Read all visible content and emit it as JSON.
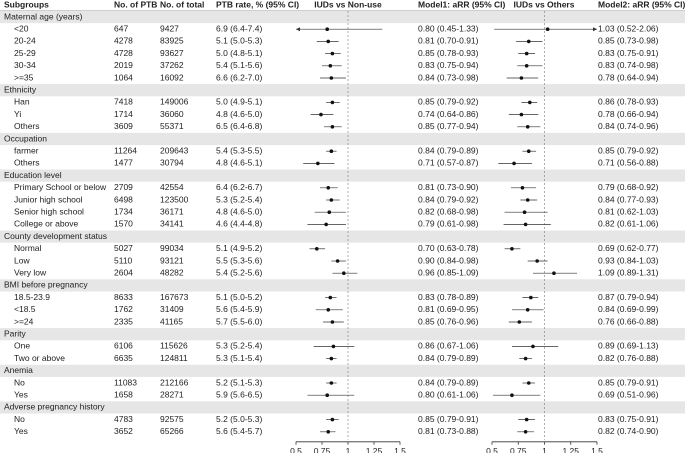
{
  "header": {
    "subgroups": "Subgroups",
    "ptb": "No. of PTB",
    "total": "No. of total",
    "rate": "PTB rate, % (95% CI)",
    "plot1": "IUDs vs Non-use",
    "model1": "Model1: aRR (95% CI)",
    "plot2": "IUDs vs Others",
    "model2": "Model2: aRR (95% CI)"
  },
  "axis": {
    "xlim": [
      0.5,
      1.5
    ],
    "xticks": [
      0.5,
      0.75,
      1,
      1.25,
      1.5
    ],
    "reference": 1
  },
  "groups": [
    {
      "name": "Maternal age (years)",
      "rows": [
        {
          "label": "<20",
          "ptb": 647,
          "total": 9427,
          "rate": "6.9 (6.4-7.4)",
          "m1": {
            "est": 0.8,
            "lo": 0.45,
            "hi": 1.33,
            "label": "0.80 (0.45-1.33)"
          },
          "m2": {
            "est": 1.03,
            "lo": 0.52,
            "hi": 2.06,
            "label": "1.03 (0.52-2.06)"
          }
        },
        {
          "label": "20-24",
          "ptb": 4278,
          "total": 83925,
          "rate": "5.1 (5.0-5.3)",
          "m1": {
            "est": 0.81,
            "lo": 0.7,
            "hi": 0.91,
            "label": "0.81 (0.70-0.91)"
          },
          "m2": {
            "est": 0.85,
            "lo": 0.73,
            "hi": 0.98,
            "label": "0.85 (0.73-0.98)"
          }
        },
        {
          "label": "25-29",
          "ptb": 4728,
          "total": 93627,
          "rate": "5.0 (4.8-5.1)",
          "m1": {
            "est": 0.85,
            "lo": 0.78,
            "hi": 0.93,
            "label": "0.85 (0.78-0.93)"
          },
          "m2": {
            "est": 0.83,
            "lo": 0.75,
            "hi": 0.91,
            "label": "0.83 (0.75-0.91)"
          }
        },
        {
          "label": "30-34",
          "ptb": 2019,
          "total": 37262,
          "rate": "5.4 (5.1-5.6)",
          "m1": {
            "est": 0.83,
            "lo": 0.75,
            "hi": 0.94,
            "label": "0.83 (0.75-0.94)"
          },
          "m2": {
            "est": 0.83,
            "lo": 0.74,
            "hi": 0.98,
            "label": "0.83 (0.74-0.98)"
          }
        },
        {
          "label": ">=35",
          "ptb": 1064,
          "total": 16092,
          "rate": "6.6 (6.2-7.0)",
          "m1": {
            "est": 0.84,
            "lo": 0.73,
            "hi": 0.98,
            "label": "0.84 (0.73-0.98)"
          },
          "m2": {
            "est": 0.78,
            "lo": 0.64,
            "hi": 0.94,
            "label": "0.78 (0.64-0.94)"
          }
        }
      ]
    },
    {
      "name": "Ethnicity",
      "rows": [
        {
          "label": "Han",
          "ptb": 7418,
          "total": 149006,
          "rate": "5.0 (4.9-5.1)",
          "m1": {
            "est": 0.85,
            "lo": 0.79,
            "hi": 0.92,
            "label": "0.85 (0.79-0.92)"
          },
          "m2": {
            "est": 0.86,
            "lo": 0.78,
            "hi": 0.93,
            "label": "0.86 (0.78-0.93)"
          }
        },
        {
          "label": "Yi",
          "ptb": 1714,
          "total": 36060,
          "rate": "4.8 (4.6-5.0)",
          "m1": {
            "est": 0.74,
            "lo": 0.64,
            "hi": 0.86,
            "label": "0.74 (0.64-0.86)"
          },
          "m2": {
            "est": 0.78,
            "lo": 0.66,
            "hi": 0.94,
            "label": "0.78 (0.66-0.94)"
          }
        },
        {
          "label": "Others",
          "ptb": 3609,
          "total": 55371,
          "rate": "6.5 (6.4-6.8)",
          "m1": {
            "est": 0.85,
            "lo": 0.77,
            "hi": 0.94,
            "label": "0.85 (0.77-0.94)"
          },
          "m2": {
            "est": 0.84,
            "lo": 0.74,
            "hi": 0.96,
            "label": "0.84 (0.74-0.96)"
          }
        }
      ]
    },
    {
      "name": "Occupation",
      "rows": [
        {
          "label": "farmer",
          "ptb": 11264,
          "total": 209643,
          "rate": "5.4 (5.3-5.5)",
          "m1": {
            "est": 0.84,
            "lo": 0.79,
            "hi": 0.89,
            "label": "0.84 (0.79-0.89)"
          },
          "m2": {
            "est": 0.85,
            "lo": 0.79,
            "hi": 0.92,
            "label": "0.85 (0.79-0.92)"
          }
        },
        {
          "label": "Others",
          "ptb": 1477,
          "total": 30794,
          "rate": "4.8 (4.6-5.1)",
          "m1": {
            "est": 0.71,
            "lo": 0.57,
            "hi": 0.87,
            "label": "0.71 (0.57-0.87)"
          },
          "m2": {
            "est": 0.71,
            "lo": 0.56,
            "hi": 0.88,
            "label": "0.71 (0.56-0.88)"
          }
        }
      ]
    },
    {
      "name": "Education level",
      "rows": [
        {
          "label": "Primary School or below",
          "ptb": 2709,
          "total": 42554,
          "rate": "6.4 (6.2-6.7)",
          "m1": {
            "est": 0.81,
            "lo": 0.73,
            "hi": 0.9,
            "label": "0.81 (0.73-0.90)"
          },
          "m2": {
            "est": 0.79,
            "lo": 0.68,
            "hi": 0.92,
            "label": "0.79 (0.68-0.92)"
          }
        },
        {
          "label": "Junior high school",
          "ptb": 6498,
          "total": 123500,
          "rate": "5.3 (5.2-5.4)",
          "m1": {
            "est": 0.84,
            "lo": 0.79,
            "hi": 0.92,
            "label": "0.84 (0.79-0.92)"
          },
          "m2": {
            "est": 0.84,
            "lo": 0.77,
            "hi": 0.93,
            "label": "0.84 (0.77-0.93)"
          }
        },
        {
          "label": "Senior high school",
          "ptb": 1734,
          "total": 36171,
          "rate": "4.8 (4.6-5.0)",
          "m1": {
            "est": 0.82,
            "lo": 0.68,
            "hi": 0.98,
            "label": "0.82 (0.68-0.98)"
          },
          "m2": {
            "est": 0.81,
            "lo": 0.62,
            "hi": 1.03,
            "label": "0.81 (0.62-1.03)"
          }
        },
        {
          "label": "College or above",
          "ptb": 1570,
          "total": 34141,
          "rate": "4.6 (4.4-4.8)",
          "m1": {
            "est": 0.79,
            "lo": 0.61,
            "hi": 0.98,
            "label": "0.79 (0.61-0.98)"
          },
          "m2": {
            "est": 0.82,
            "lo": 0.61,
            "hi": 1.06,
            "label": "0.82 (0.61-1.06)"
          }
        }
      ]
    },
    {
      "name": "County development status",
      "rows": [
        {
          "label": "Normal",
          "ptb": 5027,
          "total": 99034,
          "rate": "5.1 (4.9-5.2)",
          "m1": {
            "est": 0.7,
            "lo": 0.63,
            "hi": 0.78,
            "label": "0.70 (0.63-0.78)"
          },
          "m2": {
            "est": 0.69,
            "lo": 0.62,
            "hi": 0.77,
            "label": "0.69 (0.62-0.77)"
          }
        },
        {
          "label": "Low",
          "ptb": 5110,
          "total": 93121,
          "rate": "5.5 (5.3-5.6)",
          "m1": {
            "est": 0.9,
            "lo": 0.84,
            "hi": 0.98,
            "label": "0.90 (0.84-0.98)"
          },
          "m2": {
            "est": 0.93,
            "lo": 0.84,
            "hi": 1.03,
            "label": "0.93 (0.84-1.03)"
          }
        },
        {
          "label": "Very low",
          "ptb": 2604,
          "total": 48282,
          "rate": "5.4 (5.2-5.6)",
          "m1": {
            "est": 0.96,
            "lo": 0.85,
            "hi": 1.09,
            "label": "0.96 (0.85-1.09)"
          },
          "m2": {
            "est": 1.09,
            "lo": 0.89,
            "hi": 1.31,
            "label": "1.09 (0.89-1.31)"
          }
        }
      ]
    },
    {
      "name": "BMI before pregnancy",
      "rows": [
        {
          "label": "18.5-23.9",
          "ptb": 8633,
          "total": 167673,
          "rate": "5.1 (5.0-5.2)",
          "m1": {
            "est": 0.83,
            "lo": 0.78,
            "hi": 0.89,
            "label": "0.83 (0.78-0.89)"
          },
          "m2": {
            "est": 0.87,
            "lo": 0.79,
            "hi": 0.94,
            "label": "0.87 (0.79-0.94)"
          }
        },
        {
          "label": "<18.5",
          "ptb": 1762,
          "total": 31409,
          "rate": "5.6 (5.4-5.9)",
          "m1": {
            "est": 0.81,
            "lo": 0.69,
            "hi": 0.95,
            "label": "0.81 (0.69-0.95)"
          },
          "m2": {
            "est": 0.84,
            "lo": 0.69,
            "hi": 0.99,
            "label": "0.84 (0.69-0.99)"
          }
        },
        {
          "label": ">=24",
          "ptb": 2335,
          "total": 41165,
          "rate": "5.7 (5.5-6.0)",
          "m1": {
            "est": 0.85,
            "lo": 0.76,
            "hi": 0.96,
            "label": "0.85 (0.76-0.96)"
          },
          "m2": {
            "est": 0.76,
            "lo": 0.66,
            "hi": 0.88,
            "label": "0.76 (0.66-0.88)"
          }
        }
      ]
    },
    {
      "name": "Parity",
      "rows": [
        {
          "label": "One",
          "ptb": 6106,
          "total": 115626,
          "rate": "5.3 (5.2-5.4)",
          "m1": {
            "est": 0.86,
            "lo": 0.67,
            "hi": 1.06,
            "label": "0.86 (0.67-1.06)"
          },
          "m2": {
            "est": 0.89,
            "lo": 0.69,
            "hi": 1.13,
            "label": "0.89 (0.69-1.13)"
          }
        },
        {
          "label": "Two or above",
          "ptb": 6635,
          "total": 124811,
          "rate": "5.3 (5.1-5.4)",
          "m1": {
            "est": 0.84,
            "lo": 0.79,
            "hi": 0.89,
            "label": "0.84 (0.79-0.89)"
          },
          "m2": {
            "est": 0.82,
            "lo": 0.76,
            "hi": 0.88,
            "label": "0.82 (0.76-0.88)"
          }
        }
      ]
    },
    {
      "name": "Anemia",
      "rows": [
        {
          "label": "No",
          "ptb": 11083,
          "total": 212166,
          "rate": "5.2 (5.1-5.3)",
          "m1": {
            "est": 0.84,
            "lo": 0.79,
            "hi": 0.89,
            "label": "0.84 (0.79-0.89)"
          },
          "m2": {
            "est": 0.85,
            "lo": 0.79,
            "hi": 0.91,
            "label": "0.85 (0.79-0.91)"
          }
        },
        {
          "label": "Yes",
          "ptb": 1658,
          "total": 28271,
          "rate": "5.9 (5.6-6.5)",
          "m1": {
            "est": 0.8,
            "lo": 0.61,
            "hi": 1.06,
            "label": "0.80 (0.61-1.06)"
          },
          "m2": {
            "est": 0.69,
            "lo": 0.51,
            "hi": 0.96,
            "label": "0.69 (0.51-0.96)"
          }
        }
      ]
    },
    {
      "name": "Adverse pregnancy history",
      "rows": [
        {
          "label": "No",
          "ptb": 4783,
          "total": 92575,
          "rate": "5.2 (5.0-5.3)",
          "m1": {
            "est": 0.85,
            "lo": 0.79,
            "hi": 0.91,
            "label": "0.85 (0.79-0.91)"
          },
          "m2": {
            "est": 0.83,
            "lo": 0.75,
            "hi": 0.91,
            "label": "0.83 (0.75-0.91)"
          }
        },
        {
          "label": "Yes",
          "ptb": 3652,
          "total": 65266,
          "rate": "5.6 (5.4-5.7)",
          "m1": {
            "est": 0.81,
            "lo": 0.73,
            "hi": 0.88,
            "label": "0.81 (0.73-0.88)"
          },
          "m2": {
            "est": 0.82,
            "lo": 0.74,
            "hi": 0.9,
            "label": "0.82 (0.74-0.90)"
          }
        }
      ]
    }
  ]
}
